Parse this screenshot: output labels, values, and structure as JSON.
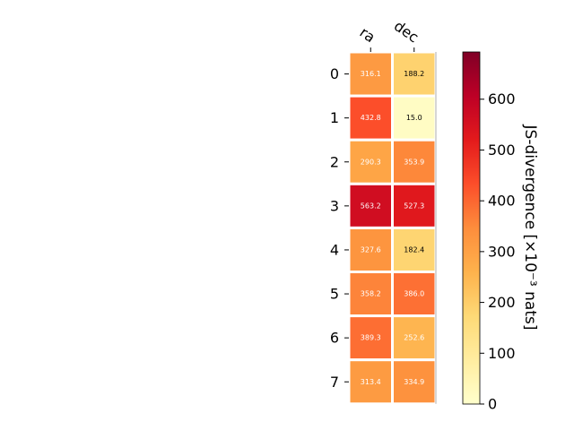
{
  "chart_data": {
    "type": "heatmap",
    "columns": [
      "ra",
      "dec"
    ],
    "rows": [
      "0",
      "1",
      "2",
      "3",
      "4",
      "5",
      "6",
      "7"
    ],
    "values": [
      [
        316.1,
        188.2
      ],
      [
        432.8,
        15.0
      ],
      [
        290.3,
        353.9
      ],
      [
        563.2,
        527.3
      ],
      [
        327.6,
        182.4
      ],
      [
        358.2,
        386.0
      ],
      [
        389.3,
        252.6
      ],
      [
        313.4,
        334.9
      ]
    ],
    "value_labels": [
      [
        "316.1",
        "188.2"
      ],
      [
        "432.8",
        "15.0"
      ],
      [
        "290.3",
        "353.9"
      ],
      [
        "563.2",
        "527.3"
      ],
      [
        "327.6",
        "182.4"
      ],
      [
        "358.2",
        "386.0"
      ],
      [
        "389.3",
        "252.6"
      ],
      [
        "313.4",
        "334.9"
      ]
    ],
    "colormap": "YlOrRd",
    "vmin": 0,
    "vmax": 693,
    "colorbar": {
      "label": "JS-divergence [×10⁻³ nats]",
      "ticks": [
        0,
        100,
        200,
        300,
        400,
        500,
        600
      ],
      "tick_labels": [
        "0",
        "100",
        "200",
        "300",
        "400",
        "500",
        "600"
      ]
    }
  }
}
